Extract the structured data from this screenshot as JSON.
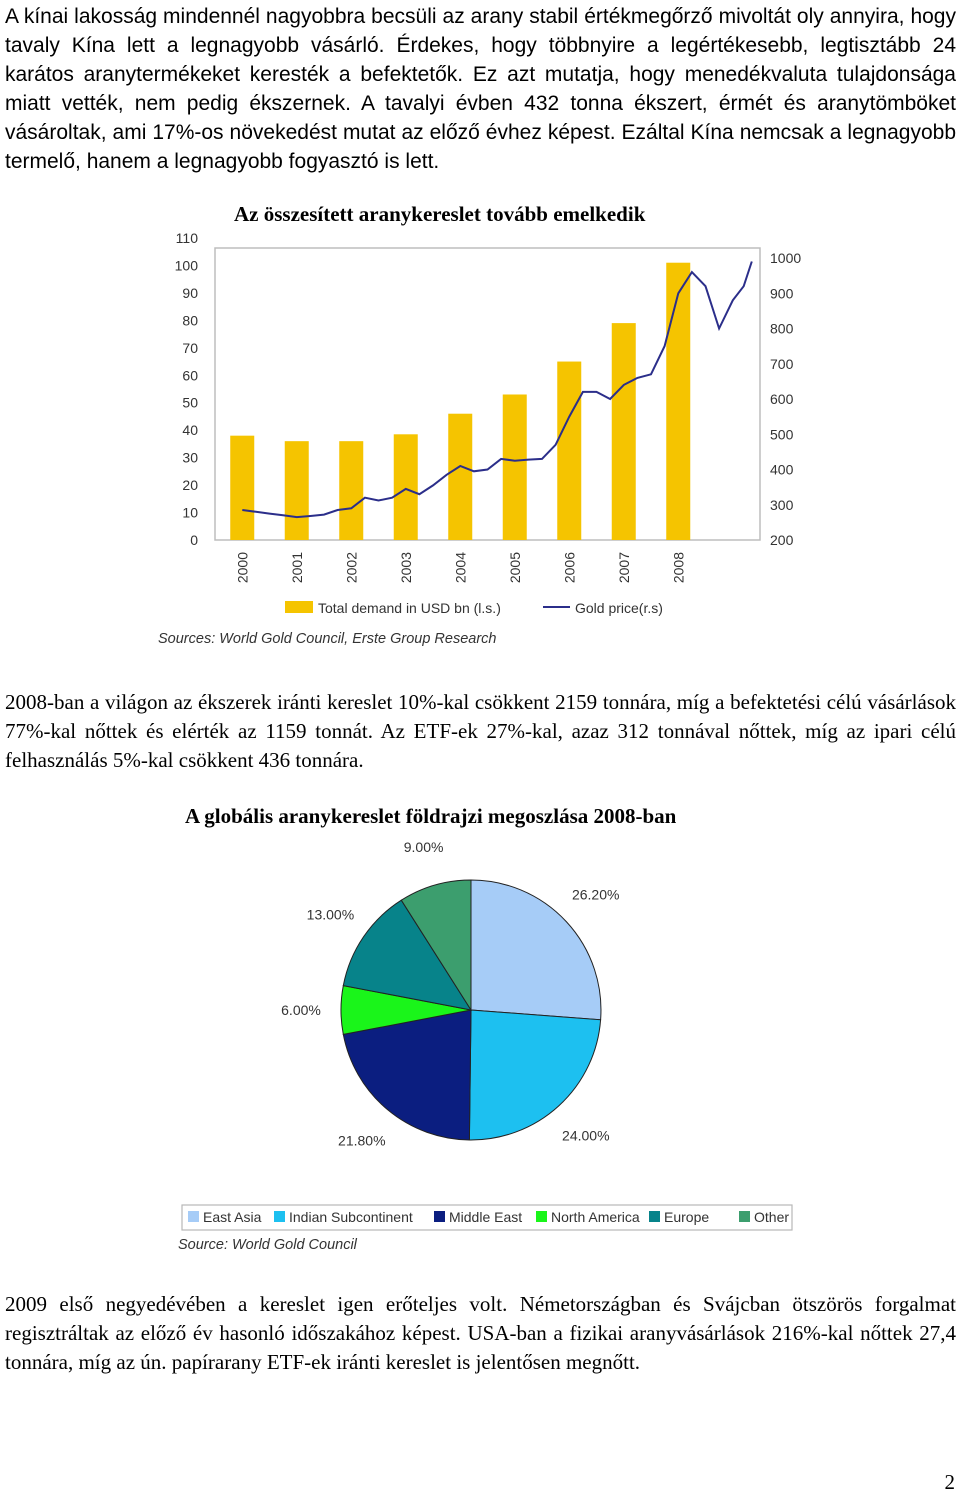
{
  "paragraphs": {
    "p1": "A kínai lakosság mindennél nagyobbra becsüli az arany stabil értékmegőrző mivoltát oly annyira, hogy tavaly Kína lett a legnagyobb vásárló. Érdekes, hogy többnyire a legértékesebb, legtisztább 24 karátos aranytermékeket keresték a befektetők. Ez azt mutatja, hogy menedékvaluta tulajdonsága miatt vették, nem pedig ékszernek. A tavalyi évben 432 tonna ékszert, érmét és aranytömböket vásároltak, ami 17%-os növekedést mutat az előző évhez képest. Ezáltal Kína nemcsak a legnagyobb termelő, hanem a legnagyobb fogyasztó is lett.",
    "p2": "2008-ban a világon az ékszerek iránti kereslet 10%-kal csökkent 2159 tonnára, míg a befektetési célú vásárlások 77%-kal nőttek és elérték az 1159 tonnát. Az ETF-ek 27%-kal, azaz 312 tonnával nőttek, míg az ipari célú felhasználás 5%-kal csökkent 436 tonnára.",
    "p3": "2009 első negyedévében a kereslet igen erőteljes volt. Németországban és Svájcban ötszörös forgalmat regisztráltak az előző év hasonló időszakához képest. USA-ban a fizikai aranyvásárlások 216%-kal nőttek 27,4 tonnára, míg az ún. papírarany ETF-ek iránti kereslet is jelentősen megnőtt."
  },
  "page_number": "2",
  "chart_data": [
    {
      "type": "bar",
      "title": "Az összesített aranykereslet tovább emelkedik",
      "categories": [
        "2000",
        "2001",
        "2002",
        "2003",
        "2004",
        "2005",
        "2006",
        "2007",
        "2008"
      ],
      "series": [
        {
          "name": "Total demand in USD bn (l.s.)",
          "values": [
            38,
            36,
            36,
            38.5,
            46,
            53,
            65,
            79,
            101
          ],
          "color": "#F5C400"
        }
      ],
      "line_series": {
        "name": "Gold price(r.s)",
        "color": "#2B2E8A",
        "x": [
          2000.0,
          2000.25,
          2000.5,
          2000.75,
          2001.0,
          2001.25,
          2001.5,
          2001.75,
          2002.0,
          2002.25,
          2002.5,
          2002.75,
          2003.0,
          2003.25,
          2003.5,
          2003.75,
          2004.0,
          2004.25,
          2004.5,
          2004.75,
          2005.0,
          2005.25,
          2005.5,
          2005.75,
          2006.0,
          2006.25,
          2006.5,
          2006.75,
          2007.0,
          2007.25,
          2007.5,
          2007.75,
          2008.0,
          2008.25,
          2008.5,
          2008.75,
          2009.0,
          2009.2,
          2009.35
        ],
        "y": [
          285,
          280,
          275,
          270,
          265,
          268,
          272,
          285,
          290,
          320,
          312,
          320,
          345,
          330,
          355,
          385,
          410,
          395,
          400,
          430,
          425,
          428,
          430,
          470,
          550,
          620,
          620,
          600,
          640,
          660,
          670,
          750,
          900,
          960,
          920,
          800,
          880,
          920,
          990
        ]
      },
      "y_left": {
        "min": 0,
        "max": 110,
        "ticks": [
          0,
          10,
          20,
          30,
          40,
          50,
          60,
          70,
          80,
          90,
          100,
          110
        ]
      },
      "y_right": {
        "min": 200,
        "max": 1000,
        "ticks": [
          200,
          300,
          400,
          500,
          600,
          700,
          800,
          900,
          1000
        ]
      },
      "x_range": [
        1999.5,
        2009.5
      ],
      "legend": [
        "Total demand in USD bn (l.s.)",
        "Gold price(r.s)"
      ],
      "source": "Sources: World Gold Council, Erste Group Research"
    },
    {
      "type": "pie",
      "title": "A globális aranykereslet földrajzi megoszlása 2008-ban",
      "labels": [
        "East Asia",
        "Indian Subcontinent",
        "Middle East",
        "North America",
        "Europe",
        "Other"
      ],
      "values": [
        26.2,
        24.0,
        21.8,
        6.0,
        13.0,
        9.0
      ],
      "value_labels": [
        "26.20%",
        "24.00%",
        "21.80%",
        "6.00%",
        "13.00%",
        "9.00%"
      ],
      "colors": [
        "#A6CCF7",
        "#1DC0F0",
        "#0B1E80",
        "#1AF51A",
        "#07838A",
        "#3C9E6E"
      ],
      "source": "Source: World Gold Council",
      "legend_position": "bottom"
    }
  ]
}
